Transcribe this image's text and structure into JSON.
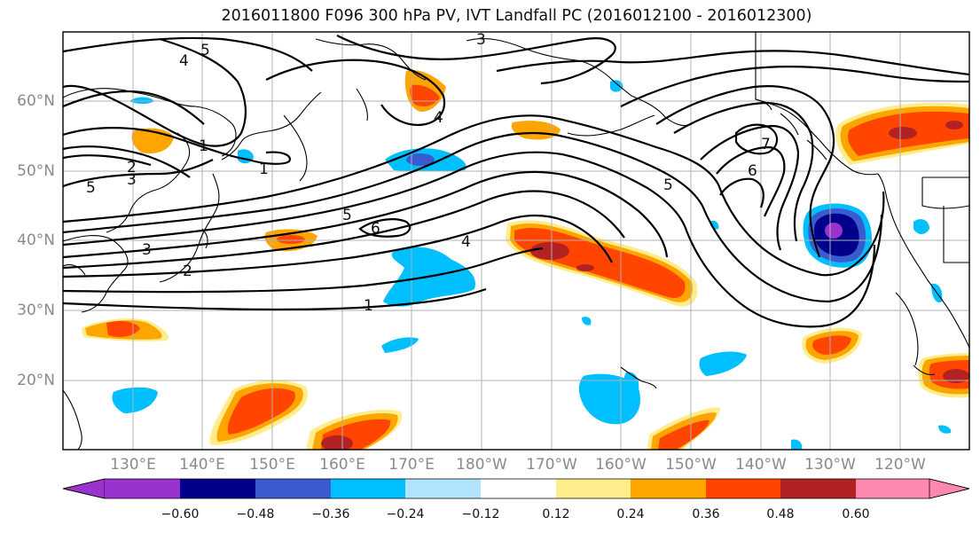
{
  "title": "2016011800 F096 300 hPa PV, IVT Landfall PC (2016012100 - 2016012300)",
  "lat_labels": [
    "60°N",
    "50°N",
    "40°N",
    "30°N",
    "20°N"
  ],
  "lon_labels": [
    "130°E",
    "140°E",
    "150°E",
    "160°E",
    "170°E",
    "180°W",
    "170°W",
    "160°W",
    "150°W",
    "140°W",
    "130°W",
    "120°W"
  ],
  "contour_labels": [
    "5",
    "4",
    "3",
    "1",
    "1",
    "2",
    "3",
    "5",
    "5",
    "6",
    "4",
    "1",
    "3",
    "2",
    "4",
    "5",
    "6",
    "7"
  ],
  "colorbar": {
    "ticks": [
      "−0.60",
      "−0.48",
      "−0.36",
      "−0.24",
      "−0.12",
      "0.12",
      "0.24",
      "0.36",
      "0.48",
      "0.60"
    ],
    "colors": [
      "#9a32cd",
      "#00008b",
      "#3a5bcd",
      "#00bfff",
      "#b2e3ff",
      "#ffffff",
      "#ffec8b",
      "#ffa500",
      "#ff4500",
      "#b22222",
      "#ff88b0"
    ]
  },
  "colors": {
    "land_outline": "#000000",
    "grid": "#b0b0b0",
    "contour": "#000000"
  }
}
